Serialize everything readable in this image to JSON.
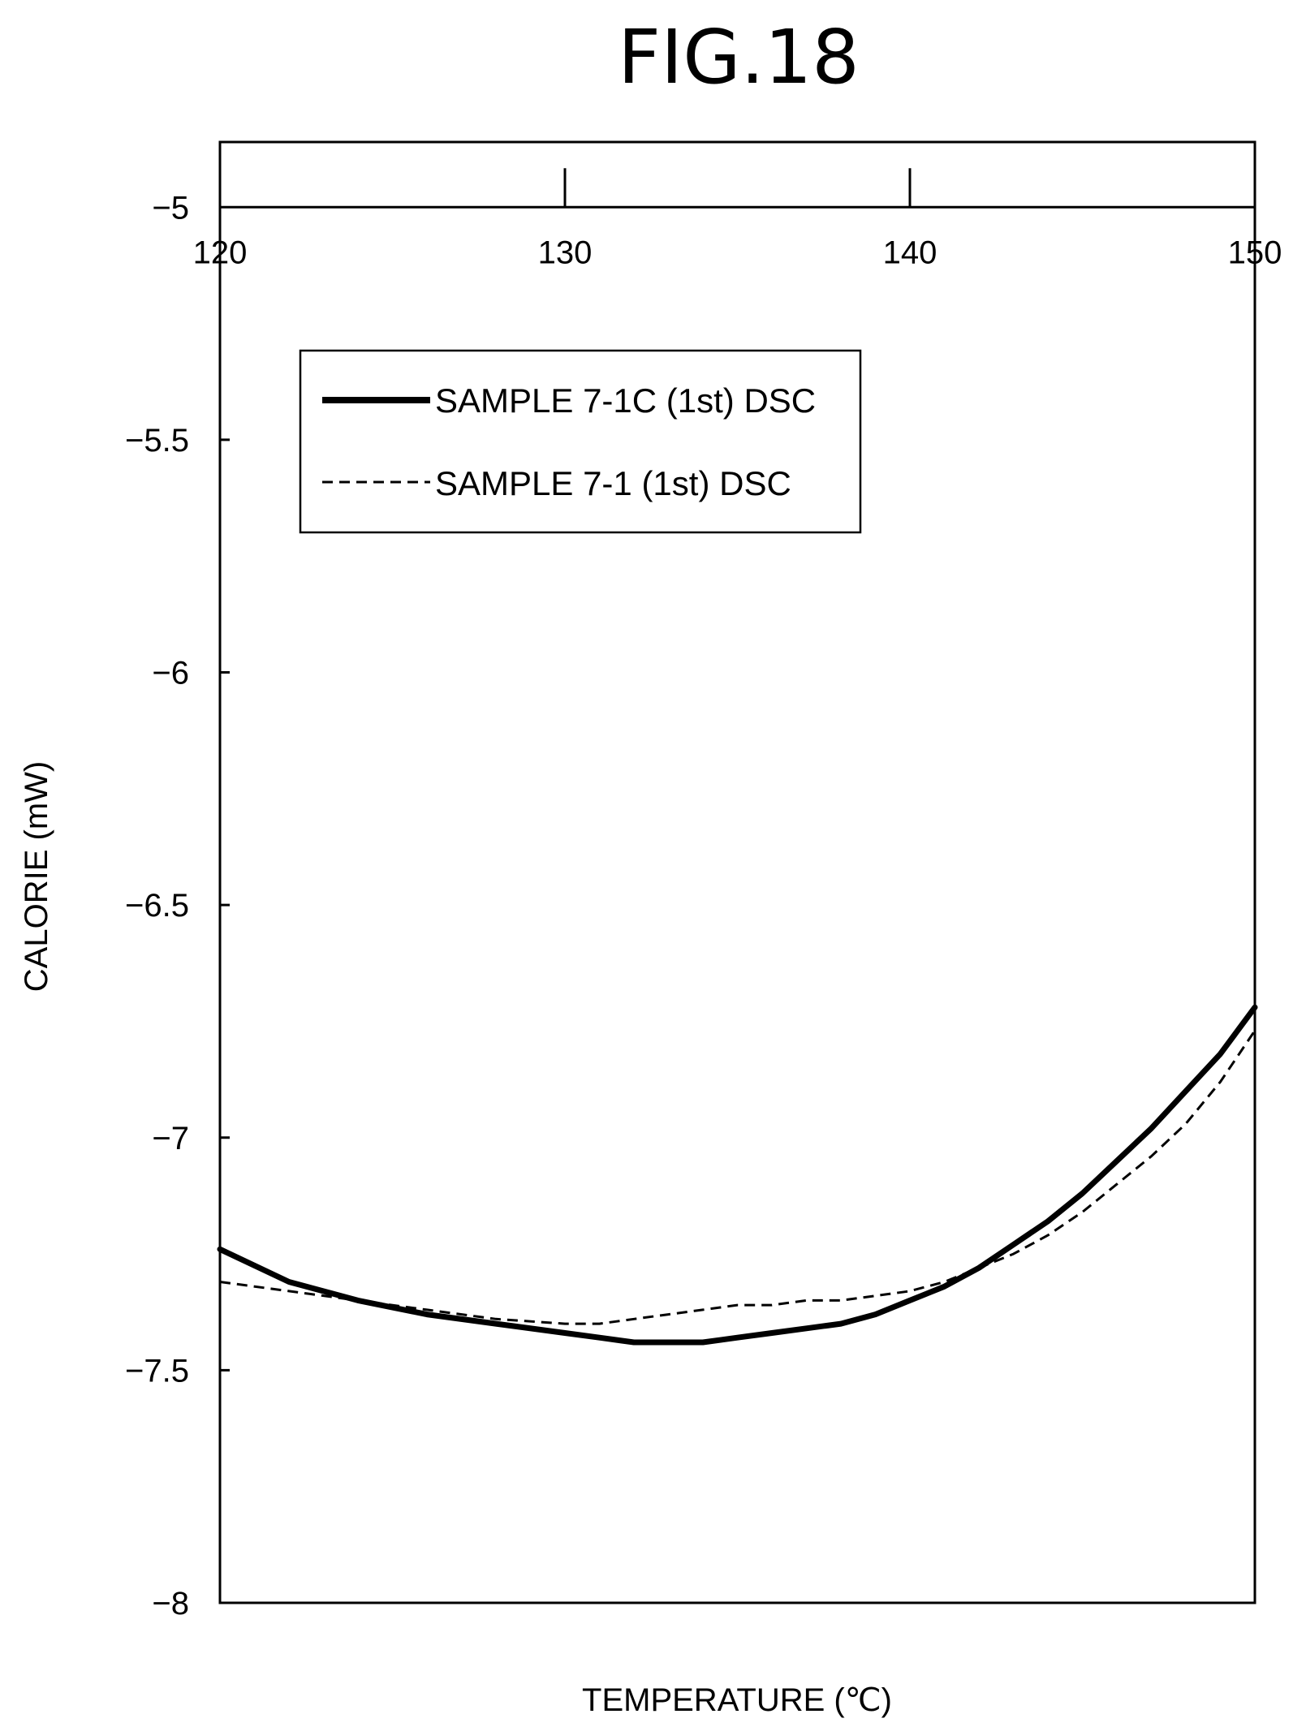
{
  "figure": {
    "label": "FIG.18"
  },
  "chart_data": {
    "type": "line",
    "xlabel": "TEMPERATURE (℃)",
    "ylabel": "CALORIE (mW)",
    "xlim": [
      120,
      150
    ],
    "ylim": [
      -8,
      -4.86
    ],
    "x_ticks": [
      120,
      130,
      140,
      150
    ],
    "x_tick_labels": [
      "120",
      "130",
      "140",
      "150"
    ],
    "y_ticks": [
      -5,
      -5.5,
      -6,
      -6.5,
      -7,
      -7.5,
      -8
    ],
    "y_tick_labels": [
      "−5",
      "−5.5",
      "−6",
      "−6.5",
      "−7",
      "−7.5",
      "−8"
    ],
    "x_axis_position": "top, at y = -5",
    "grid": false,
    "legend_position": "upper-left",
    "series": [
      {
        "name": "SAMPLE 7-1C (1st) DSC",
        "style": "solid-thick",
        "color": "#000000",
        "x": [
          120,
          122,
          124,
          126,
          128,
          130,
          131,
          132,
          133,
          134,
          135,
          136,
          137,
          138,
          139,
          140,
          141,
          142,
          143,
          144,
          145,
          146,
          147,
          148,
          149,
          150
        ],
        "y": [
          -7.24,
          -7.31,
          -7.35,
          -7.38,
          -7.4,
          -7.42,
          -7.43,
          -7.44,
          -7.44,
          -7.44,
          -7.43,
          -7.42,
          -7.41,
          -7.4,
          -7.38,
          -7.35,
          -7.32,
          -7.28,
          -7.23,
          -7.18,
          -7.12,
          -7.05,
          -6.98,
          -6.9,
          -6.82,
          -6.72
        ]
      },
      {
        "name": "SAMPLE 7-1 (1st) DSC",
        "style": "dashed",
        "color": "#000000",
        "x": [
          120,
          122,
          124,
          126,
          128,
          130,
          131,
          132,
          133,
          134,
          135,
          136,
          137,
          138,
          139,
          140,
          141,
          142,
          143,
          144,
          145,
          146,
          147,
          148,
          149,
          150
        ],
        "y": [
          -7.31,
          -7.33,
          -7.35,
          -7.37,
          -7.39,
          -7.4,
          -7.4,
          -7.39,
          -7.38,
          -7.37,
          -7.36,
          -7.36,
          -7.35,
          -7.35,
          -7.34,
          -7.33,
          -7.31,
          -7.28,
          -7.25,
          -7.21,
          -7.16,
          -7.1,
          -7.04,
          -6.97,
          -6.88,
          -6.77
        ]
      }
    ]
  }
}
